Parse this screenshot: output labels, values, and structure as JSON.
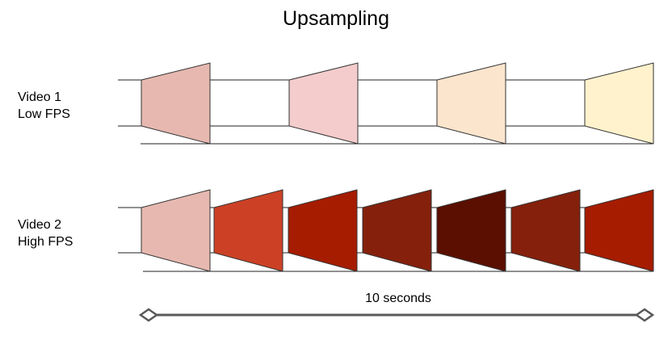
{
  "title": "Upsampling",
  "rows": [
    {
      "label_line1": "Video 1",
      "label_line2": "Low FPS",
      "frame_colors": [
        "#e6b8b0",
        "#f4cccc",
        "#fce5cd",
        "#fff2cc"
      ]
    },
    {
      "label_line1": "Video 2",
      "label_line2": "High FPS",
      "frame_colors": [
        "#e6b8b0",
        "#cc4125",
        "#a61c00",
        "#85200c",
        "#5b0f00",
        "#85200c",
        "#a61c00"
      ]
    }
  ],
  "duration_label": "10 seconds"
}
